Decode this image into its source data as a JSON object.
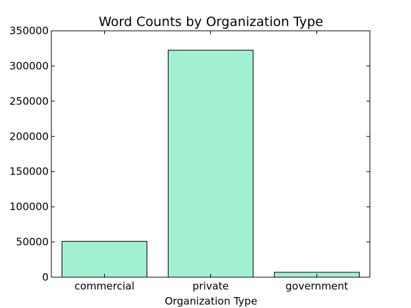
{
  "chart_data": {
    "type": "bar",
    "title": "Word Counts by Organization Type",
    "xlabel": "Organization Type",
    "ylabel": "",
    "categories": [
      "commercial",
      "private",
      "government"
    ],
    "values": [
      51000,
      322500,
      7000
    ],
    "ylim": [
      0,
      350000
    ],
    "yticks": [
      0,
      50000,
      100000,
      150000,
      200000,
      250000,
      300000,
      350000
    ],
    "ytick_labels": [
      "0",
      "50000",
      "100000",
      "150000",
      "200000",
      "250000",
      "300000",
      "350000"
    ],
    "grid": false,
    "bar_color": "#a1f0d2",
    "edge_color": "#000000"
  }
}
